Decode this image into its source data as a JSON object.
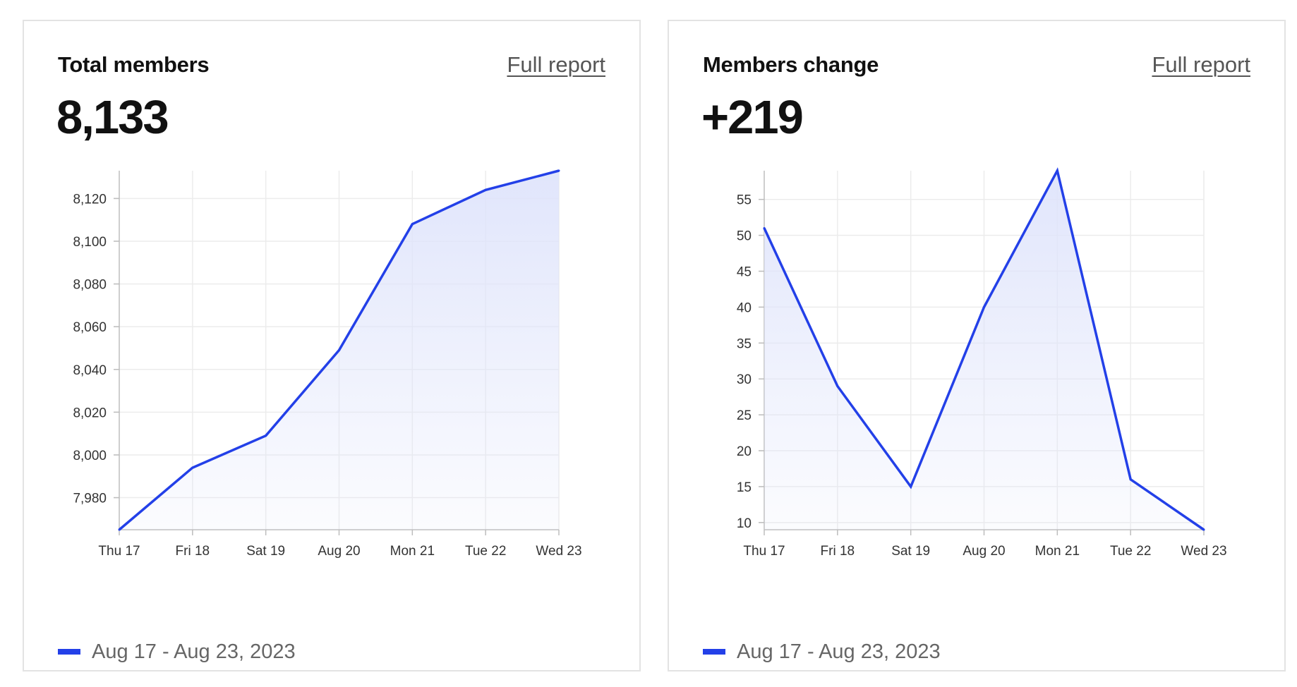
{
  "cards": [
    {
      "title": "Total members",
      "link_label": "Full report",
      "value": "8,133",
      "legend_label": "Aug 17 - Aug 23, 2023"
    },
    {
      "title": "Members change",
      "link_label": "Full report",
      "value": "+219",
      "legend_label": "Aug 17 - Aug 23, 2023"
    }
  ],
  "colors": {
    "line": "#2340e8",
    "fill": "#dfe4fb",
    "grid": "#ececec",
    "axis": "#bdbdbd"
  },
  "chart_data": [
    {
      "type": "area",
      "categories": [
        "Thu 17",
        "Fri 18",
        "Sat 19",
        "Aug 20",
        "Mon 21",
        "Tue 22",
        "Wed 23"
      ],
      "series": [
        {
          "name": "Aug 17 - Aug 23, 2023",
          "values": [
            7965,
            7994,
            8009,
            8049,
            8108,
            8124,
            8133
          ]
        }
      ],
      "yticks": [
        7980,
        8000,
        8020,
        8040,
        8060,
        8080,
        8100,
        8120
      ],
      "ylim": [
        7965,
        8133
      ],
      "grid": true,
      "legend": "bottom-left"
    },
    {
      "type": "area",
      "categories": [
        "Thu 17",
        "Fri 18",
        "Sat 19",
        "Aug 20",
        "Mon 21",
        "Tue 22",
        "Wed 23"
      ],
      "series": [
        {
          "name": "Aug 17 - Aug 23, 2023",
          "values": [
            51,
            29,
            15,
            40,
            59,
            16,
            9
          ]
        }
      ],
      "yticks": [
        10,
        15,
        20,
        25,
        30,
        35,
        40,
        45,
        50,
        55
      ],
      "ylim": [
        9,
        59
      ],
      "grid": true,
      "legend": "bottom-left"
    }
  ]
}
